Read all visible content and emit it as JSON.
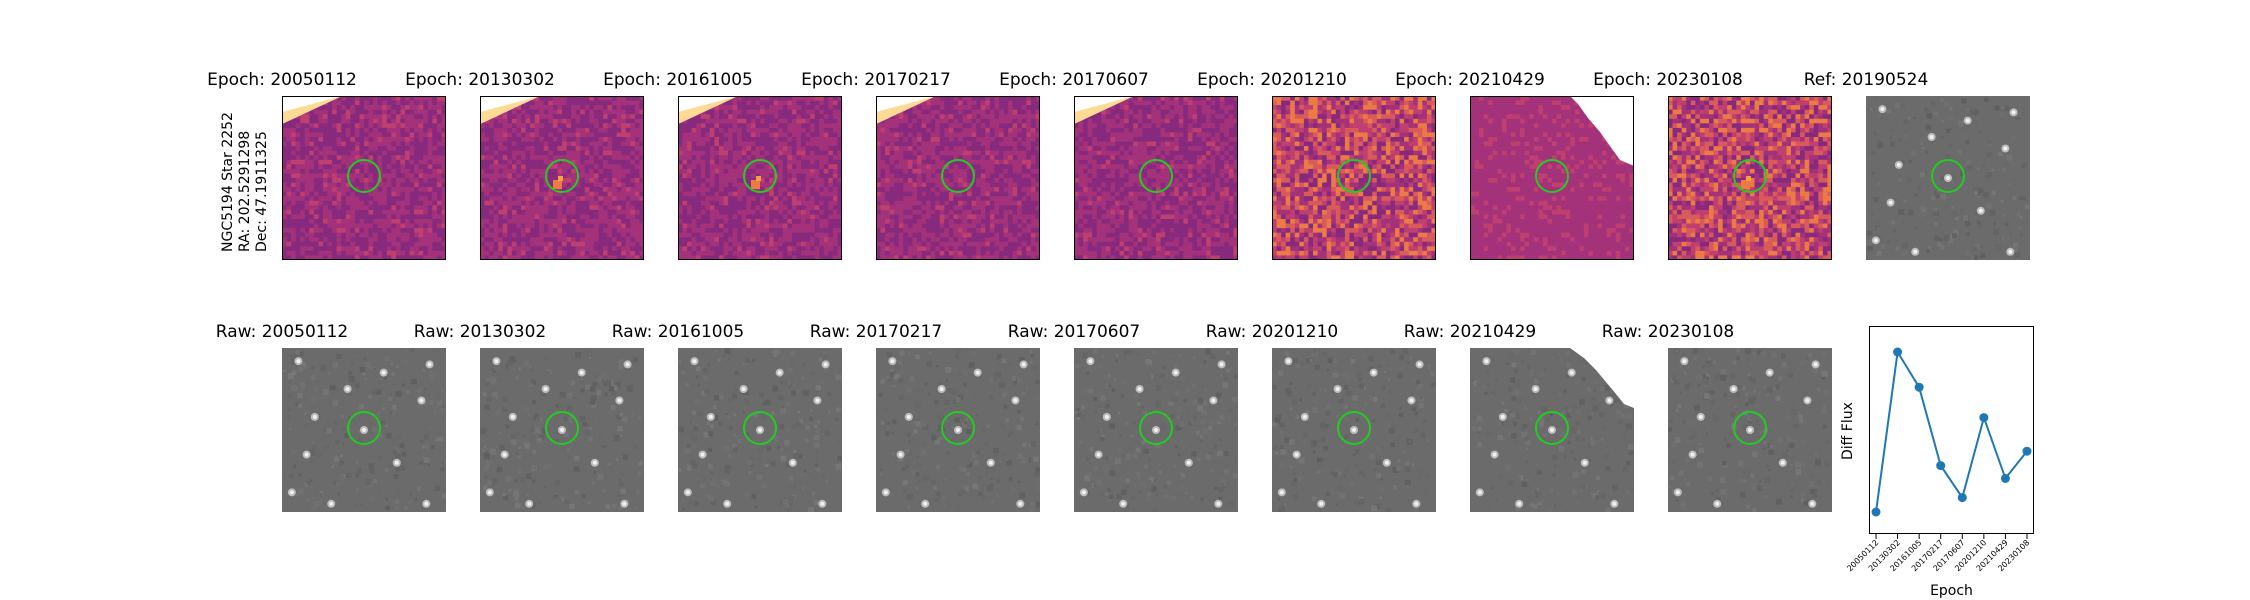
{
  "star_info": {
    "name": "NGC5194 Star 2252",
    "ra": "RA: 202.5291298",
    "dec": "Dec: 47.1911325"
  },
  "top_row": {
    "epoch_titles": [
      "Epoch: 20050112",
      "Epoch: 20130302",
      "Epoch: 20161005",
      "Epoch: 20170217",
      "Epoch: 20170607",
      "Epoch: 20201210",
      "Epoch: 20210429",
      "Epoch: 20230108"
    ],
    "ref_title": "Ref: 20190524",
    "diff_colormap": "magma-like (purple/magenta/orange)",
    "ref_colormap": "gray"
  },
  "bottom_row": {
    "raw_titles": [
      "Raw: 20050112",
      "Raw: 20130302",
      "Raw: 20161005",
      "Raw: 20170217",
      "Raw: 20170607",
      "Raw: 20201210",
      "Raw: 20210429",
      "Raw: 20230108"
    ]
  },
  "aperture_color": "#22cc22",
  "chart_data": {
    "type": "line",
    "title": "",
    "xlabel": "Epoch",
    "ylabel": "Diff Flux",
    "categories": [
      "20050112",
      "20130302",
      "20161005",
      "20170217",
      "20170607",
      "20201210",
      "20210429",
      "20230108"
    ],
    "values": [
      0.0,
      1.0,
      0.78,
      0.29,
      0.09,
      0.59,
      0.21,
      0.38
    ],
    "y_ticks_shown": false,
    "marker": "circle",
    "color": "#1f77b4"
  }
}
